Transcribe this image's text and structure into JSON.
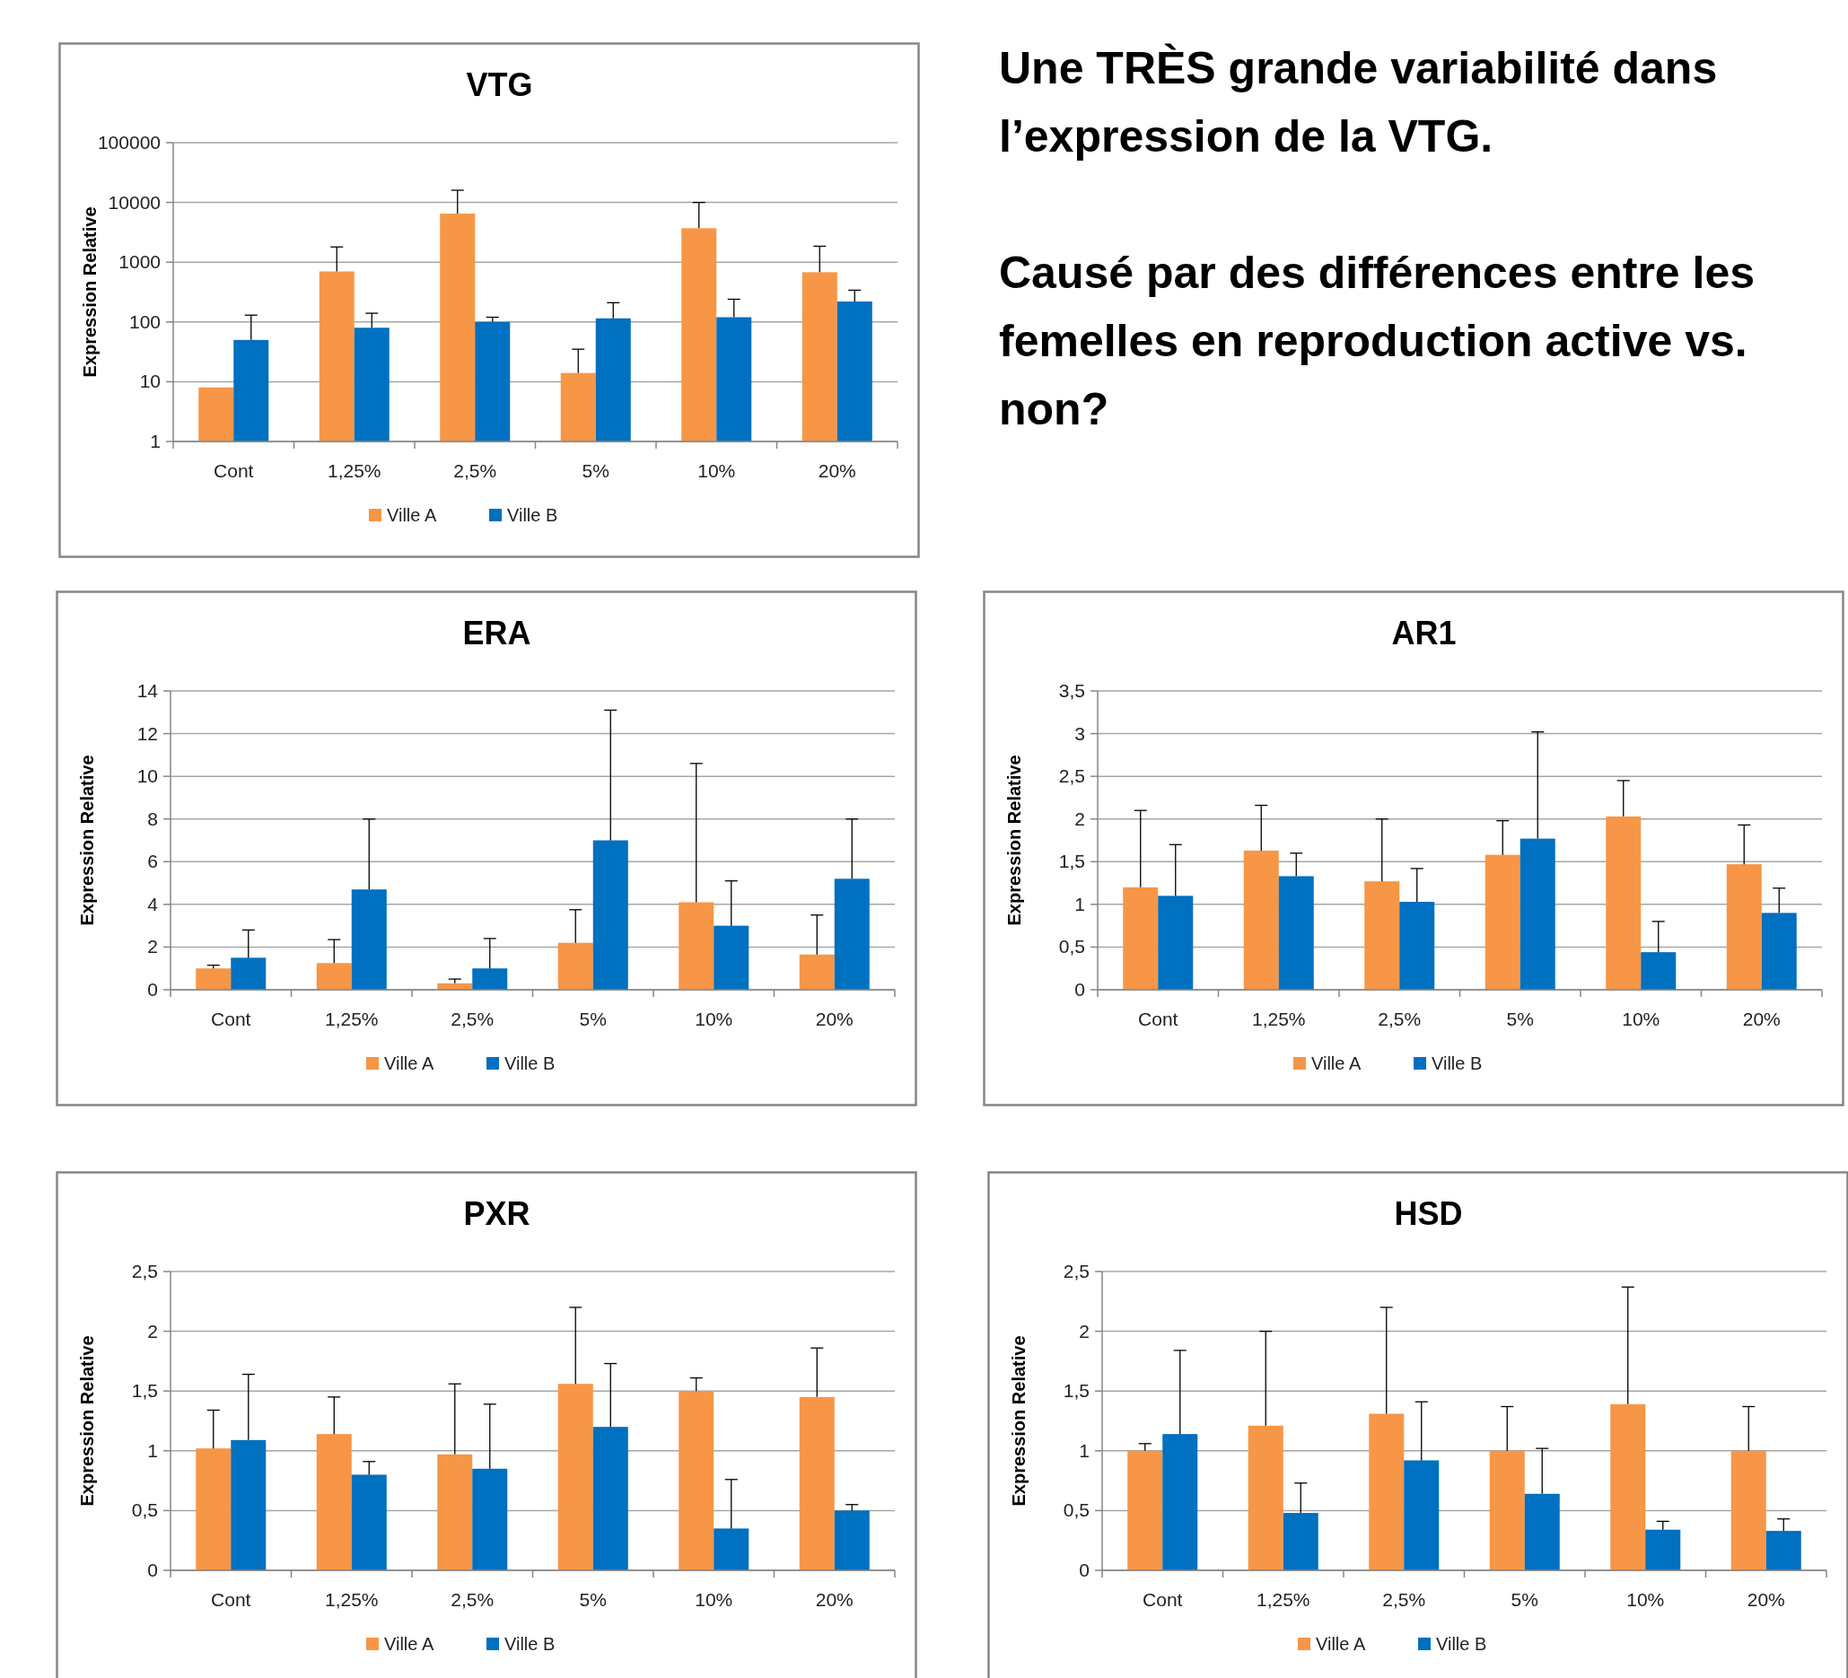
{
  "chart_data": [
    {
      "type": "bar",
      "title": "VTG",
      "ylabel": "Expression Relative",
      "categories": [
        "Cont",
        "1,25%",
        "2,5%",
        "5%",
        "10%",
        "20%"
      ],
      "log": true,
      "ylim": [
        1,
        100000
      ],
      "yticks": [
        1,
        10,
        100,
        1000,
        10000,
        100000
      ],
      "grid": "y",
      "legend": "bottom",
      "series": [
        {
          "name": "Ville A",
          "color": "#f79646",
          "values": [
            8,
            700,
            6500,
            14,
            3700,
            680
          ],
          "errors": [
            null,
            [
              700,
              1800
            ],
            [
              6500,
              16000
            ],
            [
              14,
              35
            ],
            [
              3700,
              10000
            ],
            [
              680,
              1850
            ]
          ]
        },
        {
          "name": "Ville B",
          "color": "#0070c0",
          "values": [
            50,
            80,
            100,
            115,
            120,
            220
          ],
          "errors": [
            [
              50,
              130
            ],
            [
              80,
              140
            ],
            [
              100,
              120
            ],
            [
              115,
              210
            ],
            [
              120,
              240
            ],
            [
              220,
              340
            ]
          ]
        }
      ]
    },
    {
      "type": "other",
      "annotations": [
        "Une TRÈS grande variabilité dans l’expression de la VTG.",
        "Causé par des différences entre les femelles en reproduction active vs. non?"
      ]
    },
    {
      "type": "bar",
      "title": "ERA",
      "ylabel": "Expression Relative",
      "categories": [
        "Cont",
        "1,25%",
        "2,5%",
        "5%",
        "10%",
        "20%"
      ],
      "ylim": [
        0,
        14
      ],
      "yticks": [
        0,
        2,
        4,
        6,
        8,
        10,
        12,
        14
      ],
      "grid": "y",
      "legend": "bottom",
      "series": [
        {
          "name": "Ville A",
          "color": "#f79646",
          "values": [
            1.0,
            1.25,
            0.3,
            2.2,
            4.1,
            1.65
          ],
          "errors": [
            [
              1.0,
              1.15
            ],
            [
              1.25,
              2.35
            ],
            [
              0.3,
              0.5
            ],
            [
              2.2,
              3.75
            ],
            [
              4.1,
              10.6
            ],
            [
              1.65,
              3.5
            ]
          ]
        },
        {
          "name": "Ville B",
          "color": "#0070c0",
          "values": [
            1.5,
            4.7,
            1.0,
            7.0,
            3.0,
            5.2
          ],
          "errors": [
            [
              1.5,
              2.8
            ],
            [
              4.7,
              8.0
            ],
            [
              1.0,
              2.4
            ],
            [
              7.0,
              13.1
            ],
            [
              3.0,
              5.1
            ],
            [
              5.2,
              8.0
            ]
          ]
        }
      ]
    },
    {
      "type": "bar",
      "title": "AR1",
      "ylabel": "Expression Relative",
      "categories": [
        "Cont",
        "1,25%",
        "2,5%",
        "5%",
        "10%",
        "20%"
      ],
      "ylim": [
        0,
        3.5
      ],
      "yticks": [
        0,
        {
          "value": 0.5,
          "label": "0,5"
        },
        1,
        {
          "value": 1.5,
          "label": "1,5"
        },
        2,
        {
          "value": 2.5,
          "label": "2,5"
        },
        3,
        {
          "value": 3.5,
          "label": "3,5"
        }
      ],
      "grid": "y",
      "legend": "bottom",
      "series": [
        {
          "name": "Ville A",
          "color": "#f79646",
          "values": [
            1.2,
            1.63,
            1.27,
            1.58,
            2.03,
            1.47
          ],
          "errors": [
            [
              1.2,
              2.1
            ],
            [
              1.63,
              2.16
            ],
            [
              1.27,
              2.0
            ],
            [
              1.58,
              1.98
            ],
            [
              2.03,
              2.45
            ],
            [
              1.47,
              1.93
            ]
          ]
        },
        {
          "name": "Ville B",
          "color": "#0070c0",
          "values": [
            1.1,
            1.33,
            1.03,
            1.77,
            0.44,
            0.9
          ],
          "errors": [
            [
              1.1,
              1.7
            ],
            [
              1.33,
              1.6
            ],
            [
              1.03,
              1.42
            ],
            [
              1.77,
              3.02
            ],
            [
              0.44,
              0.8
            ],
            [
              0.9,
              1.19
            ]
          ]
        }
      ]
    },
    {
      "type": "bar",
      "title": "PXR",
      "ylabel": "Expression Relative",
      "categories": [
        "Cont",
        "1,25%",
        "2,5%",
        "5%",
        "10%",
        "20%"
      ],
      "ylim": [
        0,
        2.5
      ],
      "yticks": [
        0,
        {
          "value": 0.5,
          "label": "0,5"
        },
        1,
        {
          "value": 1.5,
          "label": "1,5"
        },
        2,
        {
          "value": 2.5,
          "label": "2,5"
        }
      ],
      "grid": "y",
      "legend": "bottom",
      "series": [
        {
          "name": "Ville A",
          "color": "#f79646",
          "values": [
            1.02,
            1.14,
            0.97,
            1.56,
            1.5,
            1.45
          ],
          "errors": [
            [
              1.02,
              1.34
            ],
            [
              1.14,
              1.45
            ],
            [
              0.97,
              1.56
            ],
            [
              1.56,
              2.2
            ],
            [
              1.5,
              1.61
            ],
            [
              1.45,
              1.86
            ]
          ]
        },
        {
          "name": "Ville B",
          "color": "#0070c0",
          "values": [
            1.09,
            0.8,
            0.85,
            1.2,
            0.35,
            0.5
          ],
          "errors": [
            [
              1.09,
              1.64
            ],
            [
              0.8,
              0.91
            ],
            [
              0.85,
              1.39
            ],
            [
              1.2,
              1.73
            ],
            [
              0.35,
              0.76
            ],
            [
              0.5,
              0.55
            ]
          ]
        }
      ]
    },
    {
      "type": "bar",
      "title": "HSD",
      "ylabel": "Expression Relative",
      "categories": [
        "Cont",
        "1,25%",
        "2,5%",
        "5%",
        "10%",
        "20%"
      ],
      "ylim": [
        0,
        2.5
      ],
      "yticks": [
        0,
        {
          "value": 0.5,
          "label": "0,5"
        },
        1,
        {
          "value": 1.5,
          "label": "1,5"
        },
        2,
        {
          "value": 2.5,
          "label": "2,5"
        }
      ],
      "grid": "y",
      "legend": "bottom",
      "series": [
        {
          "name": "Ville A",
          "color": "#f79646",
          "values": [
            1.0,
            1.21,
            1.31,
            1.0,
            1.39,
            1.0
          ],
          "errors": [
            [
              1.0,
              1.06
            ],
            [
              1.21,
              2.0
            ],
            [
              1.31,
              2.2
            ],
            [
              1.0,
              1.37
            ],
            [
              1.39,
              2.37
            ],
            [
              1.0,
              1.37
            ]
          ]
        },
        {
          "name": "Ville B",
          "color": "#0070c0",
          "values": [
            1.14,
            0.48,
            0.92,
            0.64,
            0.34,
            0.33
          ],
          "errors": [
            [
              1.14,
              1.84
            ],
            [
              0.48,
              0.73
            ],
            [
              0.92,
              1.41
            ],
            [
              0.64,
              1.02
            ],
            [
              0.34,
              0.41
            ],
            [
              0.33,
              0.43
            ]
          ]
        }
      ]
    }
  ]
}
